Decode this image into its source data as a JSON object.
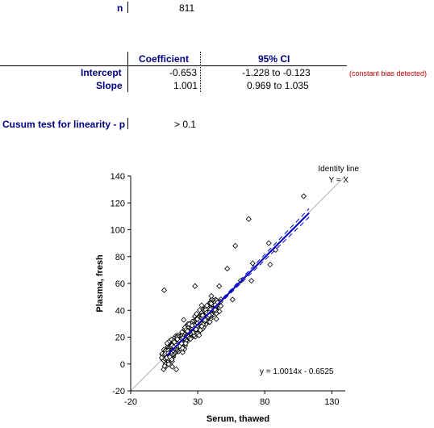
{
  "stats": {
    "n_label": "n",
    "n_value": "811",
    "header_coefficient": "Coefficient",
    "header_ci": "95% CI",
    "intercept_label": "Intercept",
    "intercept_value": "-0.653",
    "intercept_ci": "-1.228  to -0.123",
    "intercept_note": "(constant bias detected)",
    "slope_label": "Slope",
    "slope_value": "1.001",
    "slope_ci": "0.969  to 1.035",
    "cusum_label": "Cusum test for linearity - p",
    "cusum_value": "> 0.1"
  },
  "colors": {
    "label_navy": "#000080",
    "note_red": "#cc0000",
    "regression_blue": "#0000cc",
    "identity_grey": "#b0b0b0"
  },
  "chart_data": {
    "type": "scatter",
    "xlabel": "Serum, thawed",
    "ylabel": "Plasma, fresh",
    "xlim": [
      -20,
      140
    ],
    "ylim": [
      -20,
      140
    ],
    "xticks": [
      -20,
      30,
      80,
      130
    ],
    "yticks": [
      -20,
      0,
      20,
      40,
      60,
      80,
      100,
      120,
      140
    ],
    "identity_label_1": "Identity line",
    "identity_label_2": "Y = X",
    "equation": "y = 1.0014x - 0.6525",
    "regression": {
      "slope": 1.0014,
      "intercept": -0.6525,
      "x_range": [
        7,
        113
      ]
    },
    "ci_lower": {
      "slope": 0.969,
      "intercept": -0.123,
      "x_range": [
        7,
        113
      ]
    },
    "ci_upper": {
      "slope": 1.035,
      "intercept": -1.228,
      "x_range": [
        7,
        113
      ]
    },
    "outliers": [
      [
        109,
        125
      ],
      [
        68,
        108
      ],
      [
        58,
        88
      ],
      [
        83,
        90
      ],
      [
        88,
        85
      ],
      [
        71,
        75
      ],
      [
        84,
        74
      ],
      [
        62,
        62
      ],
      [
        52,
        71
      ],
      [
        70,
        62
      ],
      [
        5,
        55
      ],
      [
        46,
        58
      ],
      [
        56,
        48
      ],
      [
        43,
        44
      ],
      [
        40,
        45
      ],
      [
        14,
        -4
      ],
      [
        11,
        -2
      ],
      [
        8,
        8
      ],
      [
        28,
        58
      ]
    ],
    "cluster_core": {
      "xmin": 7,
      "xmax": 44,
      "n": 700,
      "spread": 3.5
    },
    "n_points": 811,
    "grid": false,
    "legend": "none"
  }
}
